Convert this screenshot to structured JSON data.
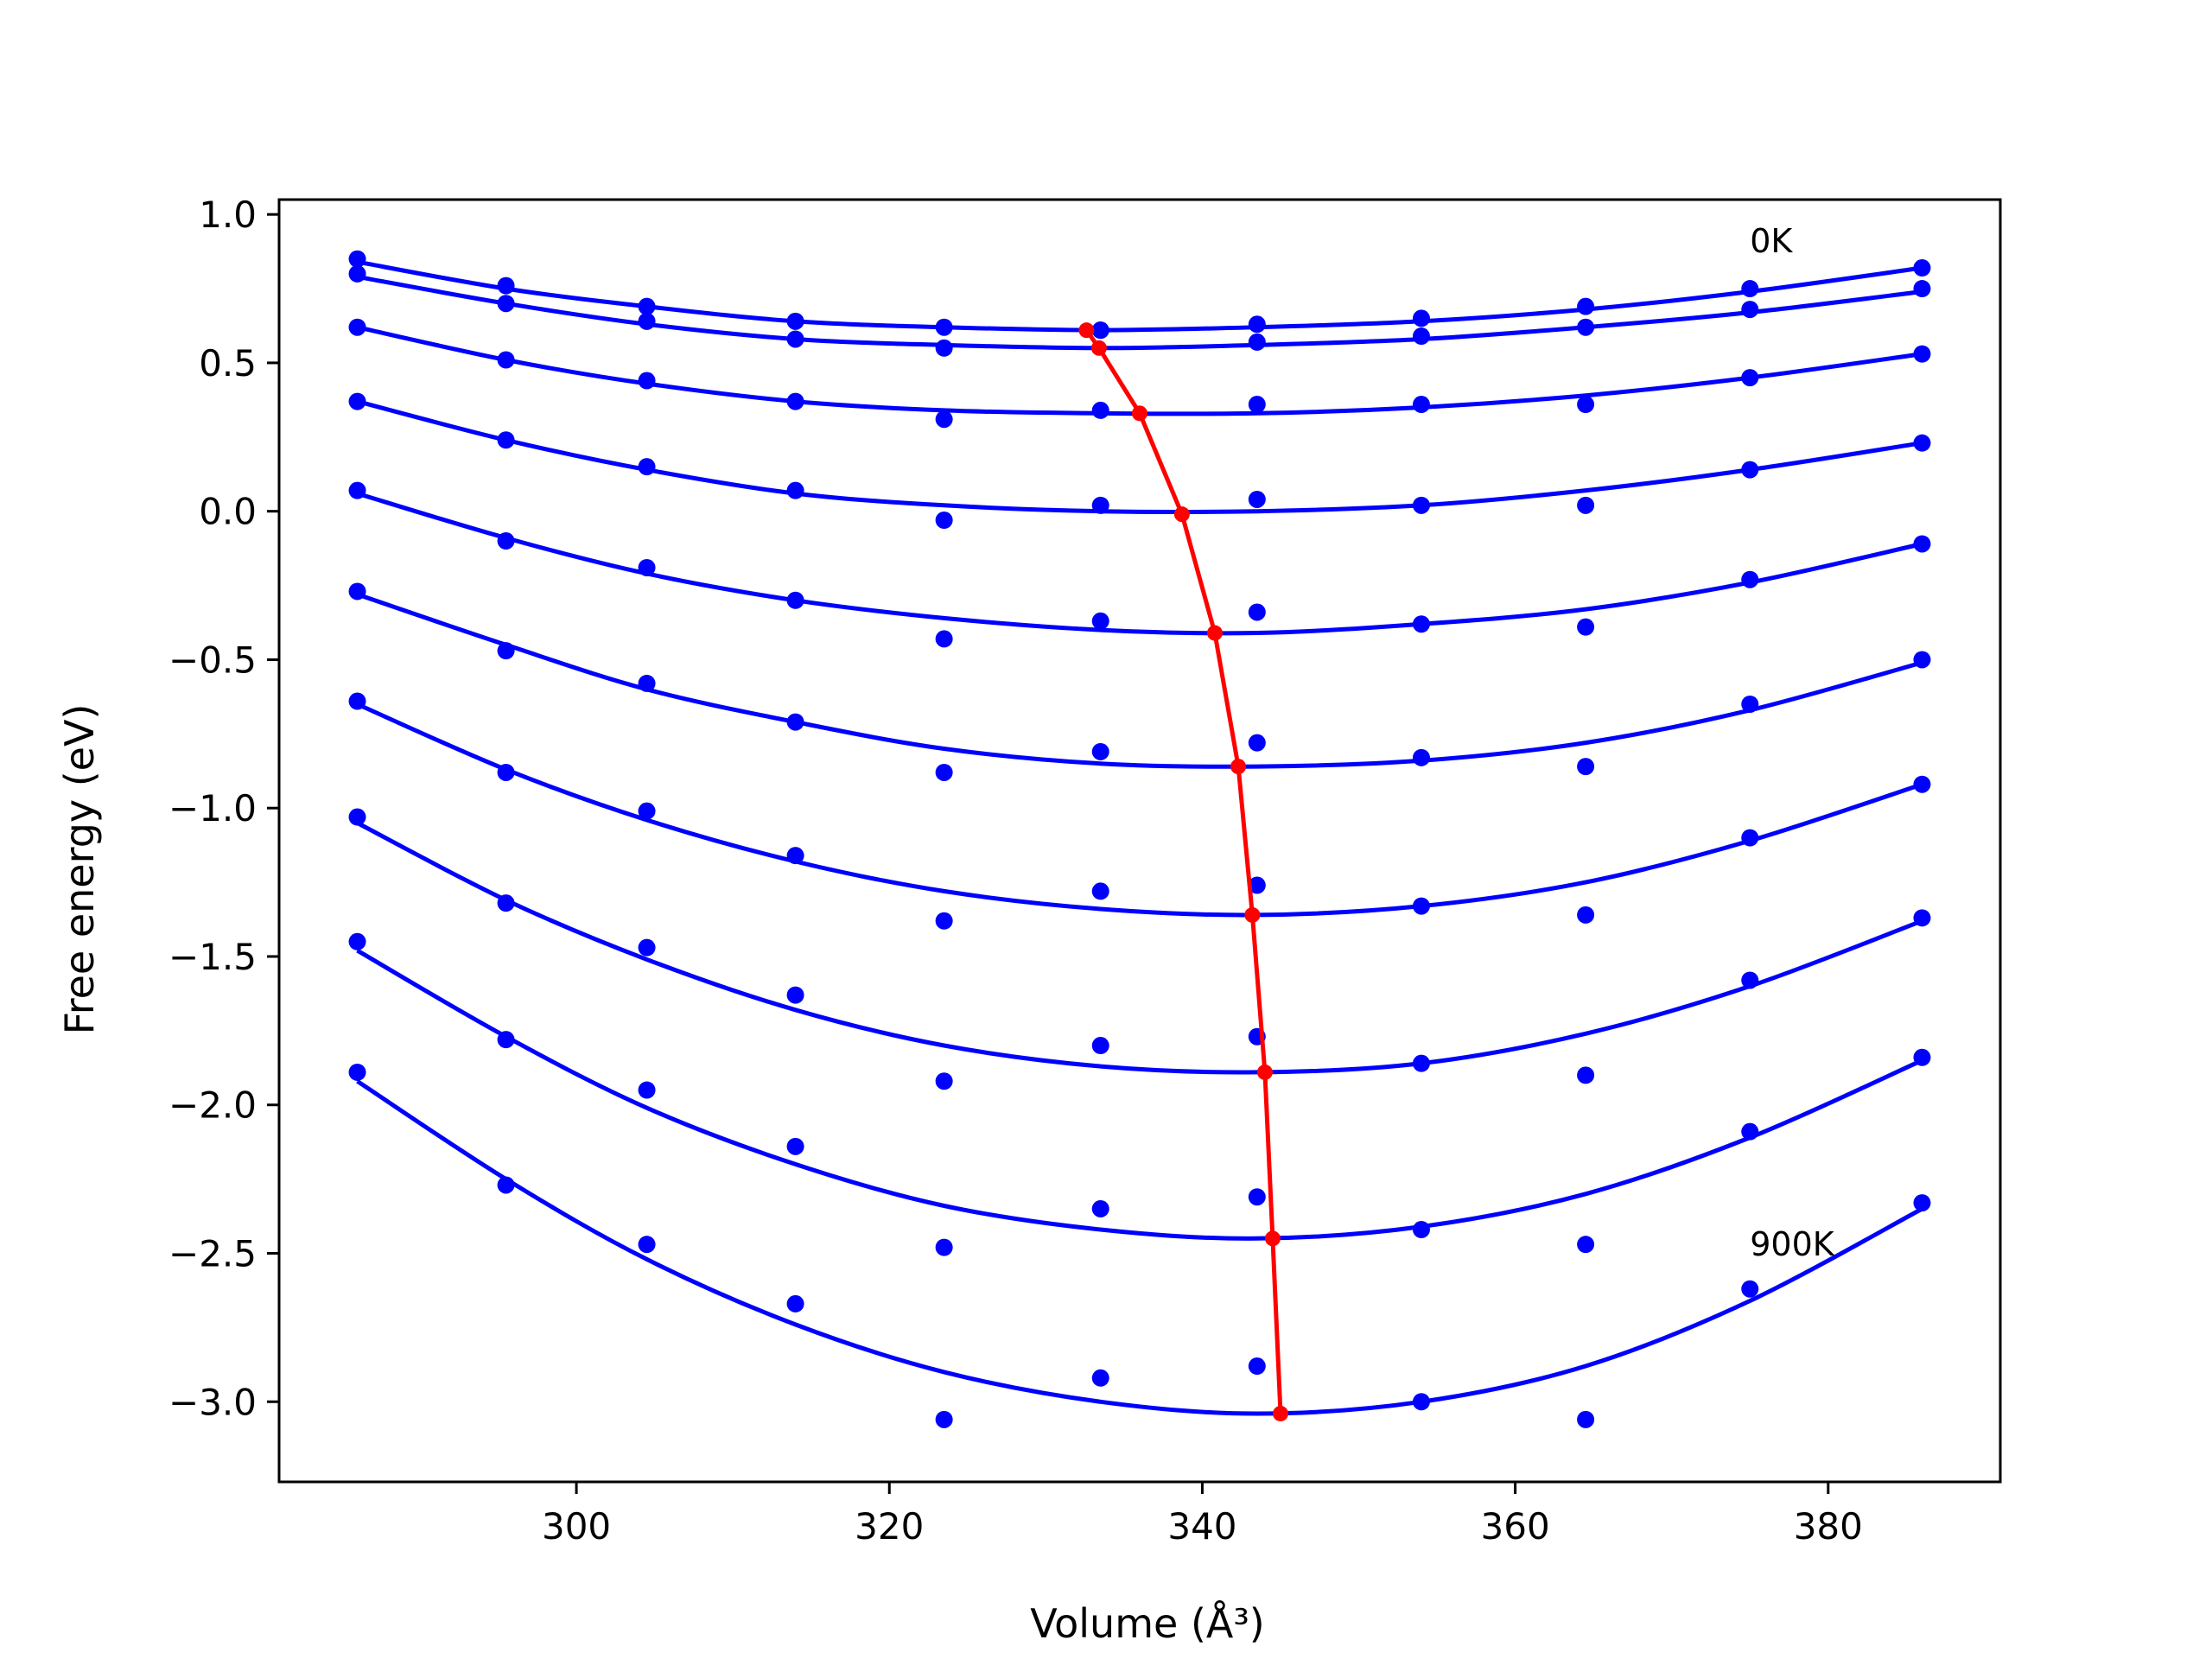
{
  "chart_data": {
    "type": "line",
    "xlabel": "Volume (Å³)",
    "ylabel": "Free energy (eV)",
    "xlim": [
      281,
      391
    ],
    "ylim": [
      -3.27,
      1.05
    ],
    "x_ticks": [
      300,
      320,
      340,
      360,
      380
    ],
    "y_ticks": [
      1.0,
      0.5,
      0.0,
      -0.5,
      -1.0,
      -1.5,
      -2.0,
      -2.5,
      -3.0
    ],
    "y_tick_labels": [
      "1.0",
      "0.5",
      "0.0",
      "−0.5",
      "−1.0",
      "−1.5",
      "−2.0",
      "−2.5",
      "−3.0"
    ],
    "volumes": [
      286.0,
      295.5,
      304.5,
      314.0,
      323.5,
      333.5,
      343.5,
      354.0,
      364.5,
      375.0,
      386.0
    ],
    "curves": [
      {
        "points": [
          0.85,
          0.76,
          0.69,
          0.64,
          0.62,
          0.61,
          0.63,
          0.65,
          0.69,
          0.75,
          0.82
        ],
        "fit": [
          0.84,
          0.75,
          0.69,
          0.64,
          0.62,
          0.61,
          0.62,
          0.64,
          0.68,
          0.74,
          0.82
        ]
      },
      {
        "points": [
          0.8,
          0.7,
          0.64,
          0.58,
          0.55,
          0.61,
          0.57,
          0.59,
          0.62,
          0.68,
          0.75
        ],
        "fit": [
          0.79,
          0.7,
          0.63,
          0.58,
          0.56,
          0.55,
          0.56,
          0.58,
          0.62,
          0.67,
          0.74
        ]
      },
      {
        "points": [
          0.62,
          0.51,
          0.44,
          0.37,
          0.31,
          0.34,
          0.36,
          0.36,
          0.36,
          0.45,
          0.53
        ],
        "fit": [
          0.62,
          0.51,
          0.43,
          0.37,
          0.34,
          0.33,
          0.33,
          0.35,
          0.39,
          0.45,
          0.53
        ]
      },
      {
        "points": [
          0.37,
          0.24,
          0.15,
          0.07,
          -0.03,
          0.02,
          0.04,
          0.02,
          0.02,
          0.14,
          0.23
        ],
        "fit": [
          0.37,
          0.24,
          0.14,
          0.06,
          0.02,
          0.0,
          0.0,
          0.02,
          0.07,
          0.14,
          0.23
        ]
      },
      {
        "points": [
          0.07,
          -0.1,
          -0.19,
          -0.3,
          -0.43,
          -0.37,
          -0.34,
          -0.38,
          -0.39,
          -0.23,
          -0.11
        ],
        "fit": [
          0.06,
          -0.09,
          -0.21,
          -0.3,
          -0.36,
          -0.4,
          -0.41,
          -0.38,
          -0.33,
          -0.24,
          -0.11
        ]
      },
      {
        "points": [
          -0.27,
          -0.47,
          -0.58,
          -0.71,
          -0.88,
          -0.81,
          -0.78,
          -0.83,
          -0.86,
          -0.65,
          -0.5
        ],
        "fit": [
          -0.28,
          -0.45,
          -0.6,
          -0.71,
          -0.8,
          -0.85,
          -0.86,
          -0.84,
          -0.78,
          -0.67,
          -0.51
        ]
      },
      {
        "points": [
          -0.64,
          -0.88,
          -1.01,
          -1.16,
          -1.38,
          -1.28,
          -1.26,
          -1.33,
          -1.36,
          -1.1,
          -0.92
        ],
        "fit": [
          -0.65,
          -0.87,
          -1.04,
          -1.18,
          -1.28,
          -1.34,
          -1.36,
          -1.33,
          -1.25,
          -1.11,
          -0.92
        ]
      },
      {
        "points": [
          -1.03,
          -1.32,
          -1.47,
          -1.63,
          -1.92,
          -1.8,
          -1.77,
          -1.86,
          -1.9,
          -1.58,
          -1.37
        ],
        "fit": [
          -1.05,
          -1.31,
          -1.51,
          -1.68,
          -1.8,
          -1.87,
          -1.89,
          -1.86,
          -1.76,
          -1.6,
          -1.38
        ]
      },
      {
        "points": [
          -1.45,
          -1.78,
          -1.95,
          -2.14,
          -2.48,
          -2.35,
          -2.31,
          -2.42,
          -2.47,
          -2.09,
          -1.84
        ],
        "fit": [
          -1.48,
          -1.77,
          -2.01,
          -2.2,
          -2.34,
          -2.42,
          -2.45,
          -2.41,
          -2.3,
          -2.11,
          -1.85
        ]
      },
      {
        "points": [
          -1.89,
          -2.27,
          -2.47,
          -2.67,
          -3.06,
          -2.92,
          -2.88,
          -3.0,
          -3.06,
          -2.62,
          -2.33
        ],
        "fit": [
          -1.92,
          -2.25,
          -2.52,
          -2.74,
          -2.9,
          -3.0,
          -3.04,
          -3.0,
          -2.88,
          -2.66,
          -2.35
        ]
      }
    ],
    "minimum_path": {
      "x": [
        332.6,
        333.4,
        336.0,
        338.7,
        340.8,
        342.3,
        343.2,
        344.0,
        344.5,
        345.0
      ],
      "y": [
        0.61,
        0.55,
        0.33,
        -0.01,
        -0.41,
        -0.86,
        -1.36,
        -1.89,
        -2.45,
        -3.04
      ]
    },
    "annotations": [
      {
        "text": "0K",
        "x": 375.0,
        "y": 0.91
      },
      {
        "text": "900K",
        "x": 375.0,
        "y": -2.47
      }
    ],
    "colors": {
      "fits": "#0000ff",
      "points": "#0000ff",
      "minimum_path": "#ff0000"
    },
    "grid": false
  }
}
